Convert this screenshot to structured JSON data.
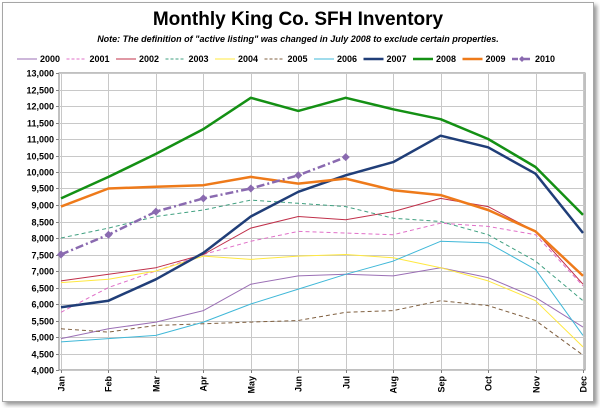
{
  "chart_data": {
    "type": "line",
    "title": "Monthly King Co. SFH Inventory",
    "subtitle": "Note: The definition of \"active listing\" was changed in July 2008  to exclude certain properties.",
    "xlabel": "",
    "ylabel": "",
    "categories": [
      "Jan",
      "Feb",
      "Mar",
      "Apr",
      "May",
      "Jun",
      "Jul",
      "Aug",
      "Sep",
      "Oct",
      "Nov",
      "Dec"
    ],
    "ylim": [
      4000,
      13000
    ],
    "ytick_step": 500,
    "grid": true,
    "legend_position": "top",
    "series": [
      {
        "name": "2000",
        "color": "#9b6fb5",
        "style": "solid",
        "width": 1,
        "markers": false,
        "values": [
          4950,
          5250,
          5450,
          5800,
          6600,
          6850,
          6900,
          6850,
          7100,
          6800,
          6200,
          5300
        ]
      },
      {
        "name": "2001",
        "color": "#e070c8",
        "style": "dashed",
        "width": 1,
        "markers": false,
        "values": [
          5750,
          6500,
          7000,
          7500,
          7900,
          8200,
          8150,
          8100,
          8450,
          8350,
          8100,
          6550
        ]
      },
      {
        "name": "2002",
        "color": "#c0304a",
        "style": "solid",
        "width": 1,
        "markers": false,
        "values": [
          6700,
          6900,
          7100,
          7500,
          8300,
          8650,
          8550,
          8800,
          9200,
          8950,
          8200,
          6600
        ]
      },
      {
        "name": "2003",
        "color": "#40a080",
        "style": "dashed",
        "width": 1,
        "markers": false,
        "values": [
          8000,
          8300,
          8650,
          8850,
          9150,
          9050,
          8950,
          8600,
          8500,
          8100,
          7300,
          6100
        ]
      },
      {
        "name": "2004",
        "color": "#ffe840",
        "style": "solid",
        "width": 1,
        "markers": false,
        "values": [
          6650,
          6750,
          7000,
          7450,
          7350,
          7450,
          7500,
          7400,
          7100,
          6700,
          6100,
          4700
        ]
      },
      {
        "name": "2005",
        "color": "#806040",
        "style": "dashed",
        "width": 1,
        "markers": false,
        "values": [
          5250,
          5150,
          5350,
          5400,
          5450,
          5500,
          5750,
          5800,
          6100,
          5950,
          5500,
          4450
        ]
      },
      {
        "name": "2006",
        "color": "#40b8d8",
        "style": "solid",
        "width": 1,
        "markers": false,
        "values": [
          4850,
          4950,
          5050,
          5450,
          6000,
          6450,
          6900,
          7300,
          7900,
          7850,
          7050,
          5050
        ]
      },
      {
        "name": "2007",
        "color": "#203e78",
        "style": "solid",
        "width": 2.5,
        "markers": false,
        "values": [
          5900,
          6100,
          6750,
          7550,
          8650,
          9400,
          9900,
          10300,
          11100,
          10750,
          9950,
          8150
        ]
      },
      {
        "name": "2008",
        "color": "#149014",
        "style": "solid",
        "width": 2.5,
        "markers": false,
        "values": [
          9200,
          9850,
          10550,
          11300,
          12250,
          11850,
          12250,
          11900,
          11600,
          11000,
          10150,
          8700
        ]
      },
      {
        "name": "2009",
        "color": "#ee7a1a",
        "style": "solid",
        "width": 2.5,
        "markers": false,
        "values": [
          8950,
          9500,
          9550,
          9600,
          9850,
          9650,
          9800,
          9450,
          9300,
          8850,
          8200,
          6850
        ]
      },
      {
        "name": "2010",
        "color": "#8a6ab0",
        "style": "dashdot",
        "width": 2.5,
        "markers": true,
        "values": [
          7500,
          8100,
          8800,
          9200,
          9500,
          9900,
          10450,
          null,
          null,
          null,
          null,
          null
        ]
      }
    ]
  }
}
